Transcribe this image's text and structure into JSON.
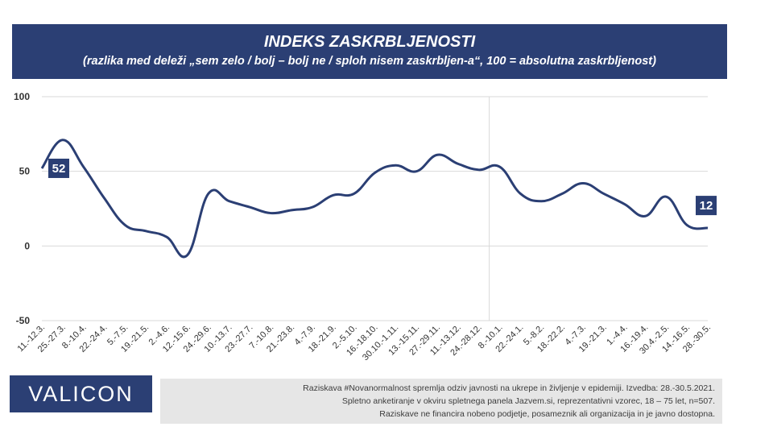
{
  "header": {
    "title": "INDEKS ZASKRBLJENOSTI",
    "subtitle": "(razlika med deleži „sem zelo / bolj – bolj  ne / sploh nisem zaskrbljen-a“, 100 = absolutna zaskrbljenost)"
  },
  "colors": {
    "accent": "#2b3f74",
    "footer_bg": "#e6e6e6"
  },
  "chart_data": {
    "type": "line",
    "categories": [
      "11.-12.3.",
      "25.-27.3.",
      "8.-10.4.",
      "22.-24.4.",
      "5.-7.5.",
      "19.-21.5.",
      "2.-4.6.",
      "12.-15.6.",
      "24.-29.6.",
      "10.-13.7.",
      "23.-27.7.",
      "7.-10.8.",
      "21.-23.8.",
      "4.-7.9.",
      "18.-21.9.",
      "2.-5.10.",
      "16.-18.10.",
      "30.10.-1.11.",
      "13.-15.11.",
      "27.-29.11.",
      "11.-13.12.",
      "24.-28.12.",
      "8.-10.1.",
      "22.-24.1.",
      "5.-8.2.",
      "18.-22.2.",
      "4.-7.3.",
      "19.-21.3.",
      "1.-4.4.",
      "16.-19.4.",
      "30.4.-2.5.",
      "14.-16.5.",
      "28.-30.5."
    ],
    "series": [
      {
        "values": [
          52,
          71,
          53,
          32,
          14,
          10,
          6,
          -6,
          35,
          30,
          26,
          22,
          24,
          26,
          34,
          35,
          49,
          54,
          50,
          61,
          55,
          51,
          53,
          35,
          30,
          35,
          42,
          35,
          28,
          20,
          33,
          14,
          12
        ]
      }
    ],
    "data_labels": [
      {
        "index": 0,
        "text": "52"
      },
      {
        "index": 32,
        "text": "12"
      }
    ],
    "yticks": [
      "100",
      "50",
      "0",
      "-50"
    ],
    "ylim": [
      -50,
      100
    ],
    "grid": true,
    "divider_after": "24.-28.12.",
    "xlabel": "",
    "ylabel": ""
  },
  "footer": {
    "logo": "VALICON",
    "notes": [
      "Raziskava #Novanormalnost spremlja odziv javnosti na ukrepe in življenje v epidemiji. Izvedba: 28.-30.5.2021.",
      "Spletno anketiranje v okviru spletnega panela Jazvem.si, reprezentativni vzorec, 18 – 75 let, n=507.",
      "Raziskave ne financira nobeno podjetje, posameznik ali organizacija in je javno dostopna."
    ]
  }
}
